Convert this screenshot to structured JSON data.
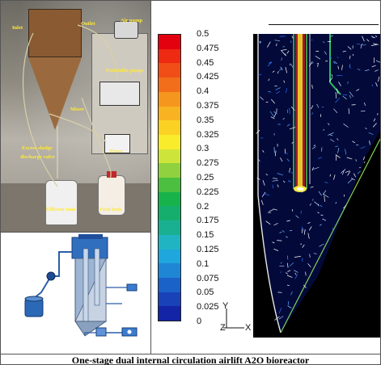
{
  "photo": {
    "labels": {
      "inlet": "Inlet",
      "outlet": "Outlet",
      "air_pump": "Air pump",
      "peristaltic_pump": "Peristaltic pump",
      "mixer": "Mixer",
      "excess_sludge_1": "Excess sludge",
      "excess_sludge_2": "discharge valve",
      "timer": "Timer",
      "effluent_tank": "Effluent tank",
      "feed_tank": "Feed tank"
    }
  },
  "colorbar": {
    "values": [
      "0.5",
      "0.475",
      "0.45",
      "0.425",
      "0.4",
      "0.375",
      "0.35",
      "0.325",
      "0.3",
      "0.275",
      "0.25",
      "0.225",
      "0.2",
      "0.175",
      "0.15",
      "0.125",
      "0.1",
      "0.075",
      "0.05",
      "0.025",
      "0"
    ],
    "colors": [
      "#e3000f",
      "#ee2a12",
      "#f04e16",
      "#f26e1a",
      "#f5961e",
      "#f7b321",
      "#fbd224",
      "#f9ec2a",
      "#cde53a",
      "#8fd13f",
      "#4cbf41",
      "#17b34a",
      "#16ae6d",
      "#19b092",
      "#20b4c3",
      "#1fa6dc",
      "#1f86d6",
      "#1b62c8",
      "#1a42b8",
      "#1324a6"
    ]
  },
  "axes": {
    "y_label": "Y",
    "x_label": "X"
  },
  "caption": "One-stage dual internal circulation airlift A2O bioreactor"
}
